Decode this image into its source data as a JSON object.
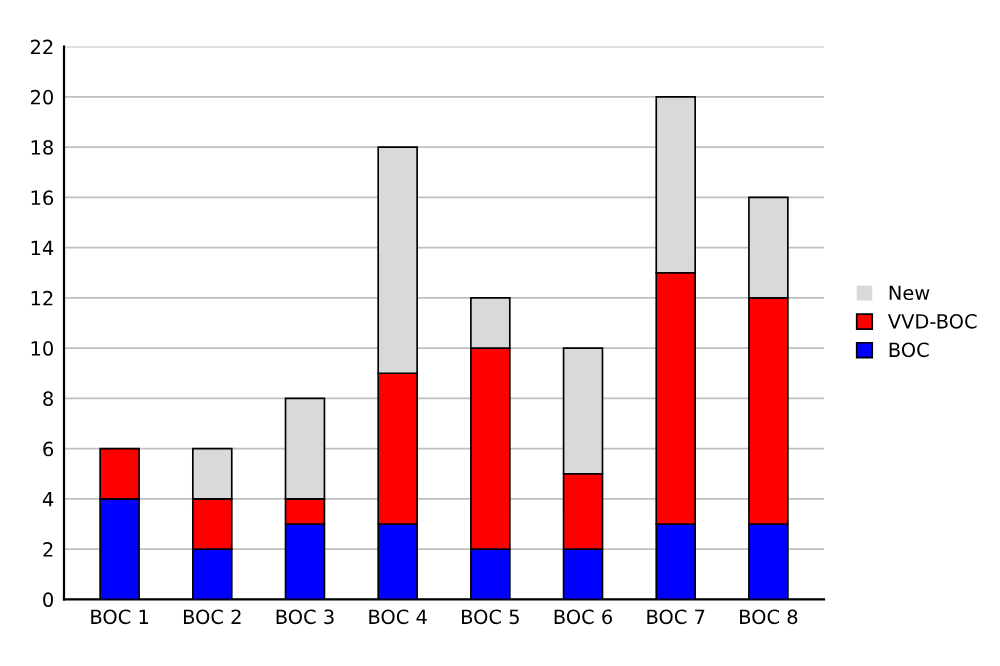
{
  "chart_data": {
    "type": "bar",
    "stacked": true,
    "categories": [
      "BOC 1",
      "BOC 2",
      "BOC 3",
      "BOC 4",
      "BOC 5",
      "BOC 6",
      "BOC 7",
      "BOC 8"
    ],
    "series": [
      {
        "name": "BOC",
        "color": "#0000ff",
        "values": [
          4,
          2,
          3,
          3,
          2,
          2,
          3,
          3
        ]
      },
      {
        "name": "VVD-BOC",
        "color": "#ff0000",
        "values": [
          2,
          2,
          1,
          6,
          8,
          3,
          10,
          9
        ]
      },
      {
        "name": "New",
        "color": "#d9d9d9",
        "values": [
          0,
          2,
          4,
          9,
          2,
          5,
          7,
          4
        ]
      }
    ],
    "ylim": [
      0,
      22
    ],
    "yticks": [
      0,
      2,
      4,
      6,
      8,
      10,
      12,
      14,
      16,
      18,
      20,
      22
    ],
    "grid": "y",
    "legend": "right"
  }
}
